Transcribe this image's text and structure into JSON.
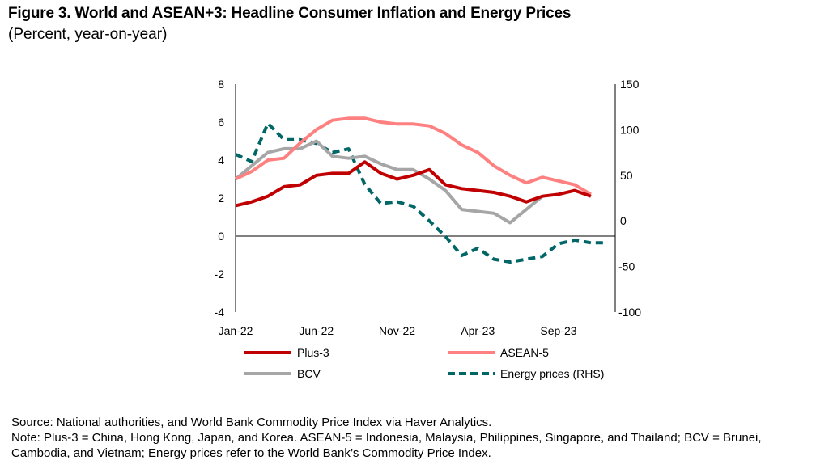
{
  "figure": {
    "title": "Figure 3. World and ASEAN+3: Headline Consumer Inflation and Energy Prices",
    "subtitle": "(Percent, year-on-year)",
    "source": "Source: National authorities, and World Bank Commodity Price Index via Haver Analytics.",
    "note_line1": "Note: Plus-3 = China, Hong Kong, Japan, and Korea. ASEAN-5 = Indonesia, Malaysia, Philippines, Singapore, and Thailand; BCV = Brunei,",
    "note_line2": "Cambodia, and Vietnam; Energy prices refer to the World Bank’s Commodity Price Index."
  },
  "chart_data": {
    "type": "line",
    "title": "Figure 3. World and ASEAN+3: Headline Consumer Inflation and Energy Prices",
    "subtitle": "(Percent, year-on-year)",
    "x": [
      "Jan-22",
      "Feb-22",
      "Mar-22",
      "Apr-22",
      "May-22",
      "Jun-22",
      "Jul-22",
      "Aug-22",
      "Sep-22",
      "Oct-22",
      "Nov-22",
      "Dec-22",
      "Jan-23",
      "Feb-23",
      "Mar-23",
      "Apr-23",
      "May-23",
      "Jun-23",
      "Jul-23",
      "Aug-23",
      "Sep-23",
      "Oct-23",
      "Nov-23",
      "Dec-23"
    ],
    "x_tick_labels": [
      "Jan-22",
      "Jun-22",
      "Nov-22",
      "Apr-23",
      "Sep-23"
    ],
    "ylim": [
      -4,
      8
    ],
    "y_ticks": [
      -4,
      -2,
      0,
      2,
      4,
      6,
      8
    ],
    "y2lim": [
      -100,
      150
    ],
    "y2_ticks": [
      -100,
      -50,
      0,
      50,
      100,
      150
    ],
    "xlabel": "",
    "ylabel": "",
    "y2label": "",
    "grid": false,
    "legend_position": "bottom",
    "series": [
      {
        "name": "Plus-3",
        "axis": "left",
        "color": "#C00000",
        "style": "solid",
        "values": [
          1.6,
          1.8,
          2.1,
          2.6,
          2.7,
          3.2,
          3.3,
          3.3,
          3.9,
          3.3,
          3.0,
          3.2,
          3.5,
          2.7,
          2.5,
          2.4,
          2.3,
          2.1,
          1.8,
          2.1,
          2.2,
          2.4,
          2.1,
          null
        ]
      },
      {
        "name": "ASEAN-5",
        "axis": "left",
        "color": "#FF8080",
        "style": "solid",
        "values": [
          3.0,
          3.4,
          4.0,
          4.1,
          4.9,
          5.6,
          6.1,
          6.2,
          6.2,
          6.0,
          5.9,
          5.9,
          5.8,
          5.4,
          4.8,
          4.4,
          3.7,
          3.2,
          2.8,
          3.1,
          2.9,
          2.7,
          2.2,
          null
        ]
      },
      {
        "name": "BCV",
        "axis": "left",
        "color": "#A6A6A6",
        "style": "solid",
        "values": [
          3.0,
          3.7,
          4.4,
          4.6,
          4.6,
          5.0,
          4.2,
          4.1,
          4.2,
          3.8,
          3.5,
          3.5,
          3.0,
          2.4,
          1.4,
          1.3,
          1.2,
          0.7,
          1.4,
          2.1,
          null,
          null,
          null,
          null
        ]
      },
      {
        "name": "Energy prices (RHS)",
        "axis": "right",
        "color": "#006666",
        "style": "dashed",
        "values": [
          73,
          65,
          107,
          89,
          89,
          85,
          75,
          79,
          40,
          19,
          21,
          16,
          0,
          -17,
          -38,
          -30,
          -42,
          -45,
          -42,
          -39,
          -25,
          -21,
          -24,
          -24
        ]
      }
    ]
  }
}
